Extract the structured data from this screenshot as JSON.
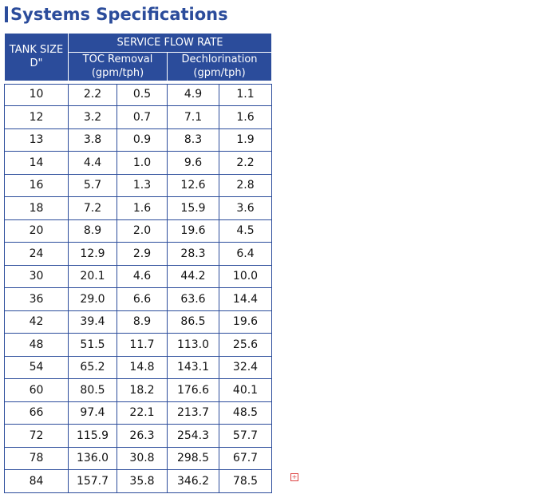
{
  "header": {
    "title": "Systems Specifications"
  },
  "table": {
    "tank_size_header": [
      "TANK SIZE",
      "D\""
    ],
    "group_header": "SERVICE FLOW RATE",
    "sub_headers": [
      [
        "TOC Removal",
        "(gpm/tph)"
      ],
      [
        "Dechlorination",
        "(gpm/tph)"
      ]
    ],
    "rows": [
      [
        "10",
        "2.2",
        "0.5",
        "4.9",
        "1.1"
      ],
      [
        "12",
        "3.2",
        "0.7",
        "7.1",
        "1.6"
      ],
      [
        "13",
        "3.8",
        "0.9",
        "8.3",
        "1.9"
      ],
      [
        "14",
        "4.4",
        "1.0",
        "9.6",
        "2.2"
      ],
      [
        "16",
        "5.7",
        "1.3",
        "12.6",
        "2.8"
      ],
      [
        "18",
        "7.2",
        "1.6",
        "15.9",
        "3.6"
      ],
      [
        "20",
        "8.9",
        "2.0",
        "19.6",
        "4.5"
      ],
      [
        "24",
        "12.9",
        "2.9",
        "28.3",
        "6.4"
      ],
      [
        "30",
        "20.1",
        "4.6",
        "44.2",
        "10.0"
      ],
      [
        "36",
        "29.0",
        "6.6",
        "63.6",
        "14.4"
      ],
      [
        "42",
        "39.4",
        "8.9",
        "86.5",
        "19.6"
      ],
      [
        "48",
        "51.5",
        "11.7",
        "113.0",
        "25.6"
      ],
      [
        "54",
        "65.2",
        "14.8",
        "143.1",
        "32.4"
      ],
      [
        "60",
        "80.5",
        "18.2",
        "176.6",
        "40.1"
      ],
      [
        "66",
        "97.4",
        "22.1",
        "213.7",
        "48.5"
      ],
      [
        "72",
        "115.9",
        "26.3",
        "254.3",
        "57.7"
      ],
      [
        "78",
        "136.0",
        "30.8",
        "298.5",
        "67.7"
      ],
      [
        "84",
        "157.7",
        "35.8",
        "346.2",
        "78.5"
      ]
    ]
  }
}
